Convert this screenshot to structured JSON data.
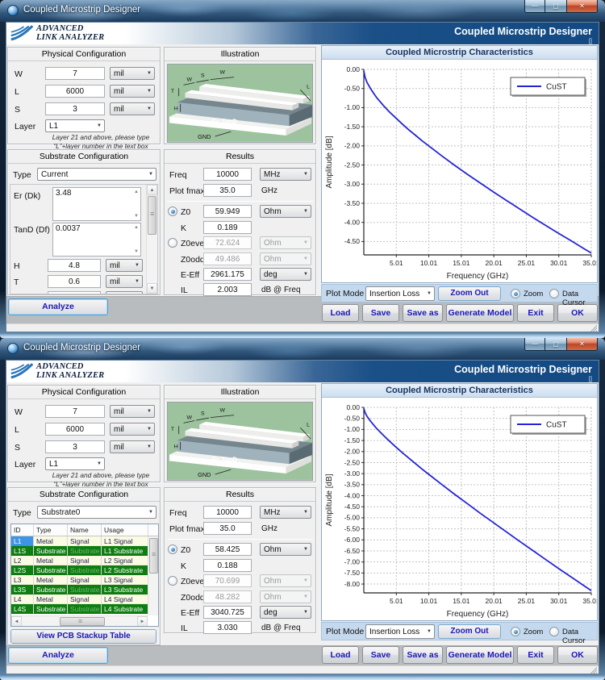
{
  "shared": {
    "window_title": "Coupled Microstrip Designer",
    "header": {
      "brand_line1": "ADVANCED",
      "brand_line2": "LINK ANALYZER",
      "title": "Coupled Microstrip Designer",
      "subtitle": "[]"
    },
    "icons": {
      "minimize": "—",
      "maximize": "▢",
      "close": "✕",
      "dropdown_arrow": "▼",
      "scroll_up": "▲",
      "scroll_down": "▼",
      "scroll_left": "◄",
      "scroll_right": "►"
    },
    "physical": {
      "title": "Physical Configuration",
      "w_label": "W",
      "w_value": "7",
      "w_unit": "mil",
      "l_label": "L",
      "l_value": "6000",
      "l_unit": "mil",
      "s_label": "S",
      "s_value": "3",
      "s_unit": "mil",
      "layer_label": "Layer",
      "layer_value": "L1",
      "note_line1": "Layer 21 and above, please type",
      "note_line2": "“L”+layer number in the text box"
    },
    "illustration": {
      "title": "Illustration",
      "label_t": "T",
      "label_w1": "W",
      "label_s": "S",
      "label_w2": "W",
      "label_h": "H",
      "label_er": "Er, TanD",
      "label_gnd": "GND",
      "label_l": "L"
    },
    "substrate_title": "Substrate Configuration",
    "type_label": "Type",
    "results": {
      "title": "Results",
      "freq_label": "Freq",
      "freq_unit": "MHz",
      "fmax_label": "Plot fmax",
      "fmax_unit": "GHz",
      "z0_label": "Z0",
      "z0_unit": "Ohm",
      "k_label": "K",
      "z0even_label": "Z0even",
      "z0even_unit": "Ohm",
      "z0odd_label": "Z0odd",
      "z0odd_unit": "Ohm",
      "eeff_label": "E-Eff",
      "eeff_unit": "deg",
      "il_label": "IL",
      "il_unit": "dB @ Freq"
    },
    "analyze_label": "Analyze",
    "chart_header": "Coupled Microstrip Characteristics",
    "plotmode": {
      "label": "Plot Mode",
      "value": "Insertion Loss",
      "zoom_out": "Zoom Out",
      "zoom_radio": "Zoom",
      "cursor_radio": "Data Cursor"
    },
    "action_buttons": [
      "Load",
      "Save",
      "Save as",
      "Generate Model",
      "Exit",
      "OK"
    ]
  },
  "window1": {
    "substrate": {
      "type_value": "Current",
      "er_label": "Er (Dk)",
      "er_value": "3.48",
      "tand_label": "TanD (Df)",
      "tand_value": "0.0037",
      "h_label": "H",
      "h_value": "4.8",
      "h_unit": "mil",
      "t_label": "T",
      "t_value": "0.6",
      "t_unit": "mil"
    },
    "results": {
      "freq": "10000",
      "fmax": "35.0",
      "z0": "59.949",
      "k": "0.189",
      "z0even": "72.624",
      "z0odd": "49.486",
      "eeff": "2961.175",
      "il": "2.003"
    }
  },
  "window2": {
    "substrate": {
      "type_value": "Substrate0",
      "table": {
        "columns": [
          "ID",
          "Type",
          "Name",
          "Usage"
        ],
        "rows": [
          {
            "id": "L1",
            "type": "Metal",
            "name": "Signal",
            "usage": "L1 Signal",
            "kind": "metal",
            "selected": true
          },
          {
            "id": "L1S",
            "type": "Substrate",
            "name": "Substrate",
            "usage": "L1 Substrate",
            "kind": "substrate"
          },
          {
            "id": "L2",
            "type": "Metal",
            "name": "Signal",
            "usage": "L2 Signal",
            "kind": "metal"
          },
          {
            "id": "L2S",
            "type": "Substrate",
            "name": "Substrate",
            "usage": "L2 Substrate",
            "kind": "substrate"
          },
          {
            "id": "L3",
            "type": "Metal",
            "name": "Signal",
            "usage": "L3 Signal",
            "kind": "metal"
          },
          {
            "id": "L3S",
            "type": "Substrate",
            "name": "Substrate",
            "usage": "L3 Substrate",
            "kind": "substrate"
          },
          {
            "id": "L4",
            "type": "Metal",
            "name": "Signal",
            "usage": "L4 Signal",
            "kind": "metal"
          },
          {
            "id": "L4S",
            "type": "Substrate",
            "name": "Substrate",
            "usage": "L4 Substrate",
            "kind": "substrate"
          }
        ]
      },
      "view_stackup_label": "View PCB Stackup Table"
    },
    "results": {
      "freq": "10000",
      "fmax": "35.0",
      "z0": "58.425",
      "k": "0.188",
      "z0even": "70.699",
      "z0odd": "48.282",
      "eeff": "3040.725",
      "il": "3.030"
    }
  },
  "chart_data": [
    {
      "type": "line",
      "title": "Coupled Microstrip Characteristics",
      "xlabel": "Frequency (GHz)",
      "ylabel": "Amplitude [dB]",
      "xlim": [
        0.01,
        35.01
      ],
      "ylim": [
        -4.85,
        0
      ],
      "grid": true,
      "legend_position": "upper-right",
      "xtick_vals": [
        5.01,
        10.01,
        15.01,
        20.01,
        25.01,
        30.01,
        35.01
      ],
      "xtick_labels": [
        "5.01",
        "10.01",
        "15.01",
        "20.01",
        "25.01",
        "30.01",
        "35.01"
      ],
      "ytick_vals": [
        0,
        -0.5,
        -1,
        -1.5,
        -2,
        -2.5,
        -3,
        -3.5,
        -4,
        -4.5
      ],
      "ytick_labels": [
        "0.00",
        "-0.50",
        "-1.00",
        "-1.50",
        "-2.00",
        "-2.50",
        "-3.00",
        "-3.50",
        "-4.00",
        "-4.50"
      ],
      "series": [
        {
          "name": "CuST",
          "color": "#2424d6",
          "x": [
            0.01,
            0.2,
            0.5,
            1,
            1.5,
            2,
            3,
            4,
            5,
            6,
            7,
            8,
            9,
            10,
            12,
            14,
            16,
            18,
            20,
            22,
            24,
            26,
            28,
            30,
            32,
            34,
            35.01
          ],
          "y": [
            -0.04,
            -0.2,
            -0.34,
            -0.49,
            -0.62,
            -0.74,
            -0.94,
            -1.12,
            -1.28,
            -1.44,
            -1.59,
            -1.73,
            -1.87,
            -2.0,
            -2.26,
            -2.51,
            -2.75,
            -2.98,
            -3.21,
            -3.43,
            -3.65,
            -3.87,
            -4.08,
            -4.29,
            -4.49,
            -4.7,
            -4.8
          ]
        }
      ]
    },
    {
      "type": "line",
      "title": "Coupled Microstrip Characteristics",
      "xlabel": "Frequency (GHz)",
      "ylabel": "Amplitude [dB]",
      "xlim": [
        0.01,
        35.01
      ],
      "ylim": [
        -8.4,
        0
      ],
      "grid": true,
      "legend_position": "upper-right",
      "xtick_vals": [
        5.01,
        10.01,
        15.01,
        20.01,
        25.01,
        30.01,
        35.01
      ],
      "xtick_labels": [
        "5.01",
        "10.01",
        "15.01",
        "20.01",
        "25.01",
        "30.01",
        "35.01"
      ],
      "ytick_vals": [
        0,
        -0.5,
        -1,
        -1.5,
        -2,
        -2.5,
        -3,
        -3.5,
        -4,
        -4.5,
        -5,
        -5.5,
        -6,
        -6.5,
        -7,
        -7.5,
        -8
      ],
      "ytick_labels": [
        "0.00",
        "-0.50",
        "-1.00",
        "-1.50",
        "-2.00",
        "-2.50",
        "-3.00",
        "-3.50",
        "-4.00",
        "-4.50",
        "-5.00",
        "-5.50",
        "-6.00",
        "-6.50",
        "-7.00",
        "-7.50",
        "-8.00"
      ],
      "series": [
        {
          "name": "CuST",
          "color": "#2424d6",
          "x": [
            0.01,
            0.2,
            0.5,
            1,
            1.5,
            2,
            3,
            4,
            5,
            6,
            7,
            8,
            9,
            10,
            12,
            14,
            16,
            18,
            20,
            22,
            24,
            26,
            28,
            30,
            32,
            34,
            35.01
          ],
          "y": [
            -0.05,
            -0.23,
            -0.4,
            -0.61,
            -0.79,
            -0.96,
            -1.26,
            -1.54,
            -1.81,
            -2.07,
            -2.31,
            -2.56,
            -2.8,
            -3.03,
            -3.49,
            -3.94,
            -4.37,
            -4.81,
            -5.23,
            -5.65,
            -6.07,
            -6.48,
            -6.89,
            -7.3,
            -7.7,
            -8.1,
            -8.3
          ]
        }
      ]
    }
  ],
  "colors": {
    "header_blue": "#174f87",
    "chart_title_bg": "#cddef0",
    "plotbar_bg": "#c4d9ed",
    "button_text_blue": "#1a18b4",
    "series_blue": "#2424d6",
    "table_green": "#0e7e11",
    "table_cream": "#fbfae3",
    "selected_cell_blue": "#3e95e8",
    "illustration_green": "#9cc39d"
  }
}
